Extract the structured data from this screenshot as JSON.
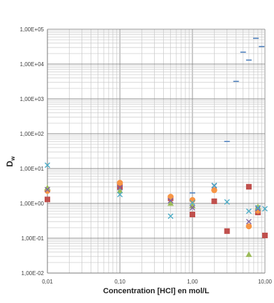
{
  "chart_data": {
    "type": "scatter",
    "title": "",
    "xlabel": "Concentration [HCl] en mol/L",
    "ylabel": {
      "main": "D",
      "sub": "w"
    },
    "xscale": "log",
    "yscale": "log",
    "xlim": [
      0.01,
      10
    ],
    "ylim": [
      0.01,
      100000
    ],
    "x_ticks": [
      0.01,
      0.1,
      1,
      10
    ],
    "x_tick_labels": [
      "0,01",
      "0,10",
      "1,00",
      "10,00"
    ],
    "y_ticks": [
      0.01,
      0.1,
      1,
      10,
      100,
      1000,
      10000,
      100000
    ],
    "y_tick_labels": [
      "1,00E-02",
      "1,00E-01",
      "1,00E+00",
      "1,00E+01",
      "1,00E+02",
      "1,00E+03",
      "1,00E+04",
      "1,00E+05"
    ],
    "grid": true,
    "legend": "none",
    "series": [
      {
        "marker": "square",
        "color": "#c0504d",
        "points": [
          [
            0.01,
            1.3
          ],
          [
            0.1,
            3.0
          ],
          [
            0.5,
            1.4
          ],
          [
            1,
            0.48
          ],
          [
            2,
            1.15
          ],
          [
            3,
            0.16
          ],
          [
            6,
            3.0
          ],
          [
            8,
            0.55
          ],
          [
            10,
            0.12
          ]
        ]
      },
      {
        "marker": "circle",
        "color": "#f79646",
        "points": [
          [
            0.01,
            2.3
          ],
          [
            0.1,
            3.9
          ],
          [
            0.5,
            1.55
          ],
          [
            1,
            1.25
          ],
          [
            2,
            2.4
          ],
          [
            6,
            0.22
          ],
          [
            8,
            0.62
          ]
        ]
      },
      {
        "marker": "triangle",
        "color": "#9bbb59",
        "points": [
          [
            0.01,
            2.8
          ],
          [
            0.1,
            2.3
          ],
          [
            0.5,
            1.0
          ],
          [
            1,
            0.85
          ],
          [
            6,
            0.034
          ],
          [
            8,
            0.8
          ]
        ]
      },
      {
        "marker": "x",
        "color": "#8064a2",
        "points": [
          [
            0.01,
            2.5
          ],
          [
            0.1,
            2.8
          ],
          [
            0.5,
            1.2
          ],
          [
            1,
            0.75
          ],
          [
            2,
            3.2
          ],
          [
            6,
            0.3
          ],
          [
            8,
            0.7
          ]
        ]
      },
      {
        "marker": "x",
        "color": "#4bacc6",
        "points": [
          [
            0.01,
            12.5
          ],
          [
            0.1,
            1.8
          ],
          [
            0.5,
            0.43
          ],
          [
            1,
            1.05
          ],
          [
            2,
            3.3
          ],
          [
            3,
            1.1
          ],
          [
            6,
            0.6
          ],
          [
            8,
            0.75
          ],
          [
            10,
            0.7
          ]
        ]
      },
      {
        "marker": "dash",
        "color": "#4f81bd",
        "points": [
          [
            1,
            2.0
          ],
          [
            3,
            60
          ],
          [
            4,
            3200
          ],
          [
            5,
            22000
          ],
          [
            6,
            13000
          ],
          [
            7.5,
            55000
          ],
          [
            9,
            32000
          ]
        ]
      }
    ]
  }
}
